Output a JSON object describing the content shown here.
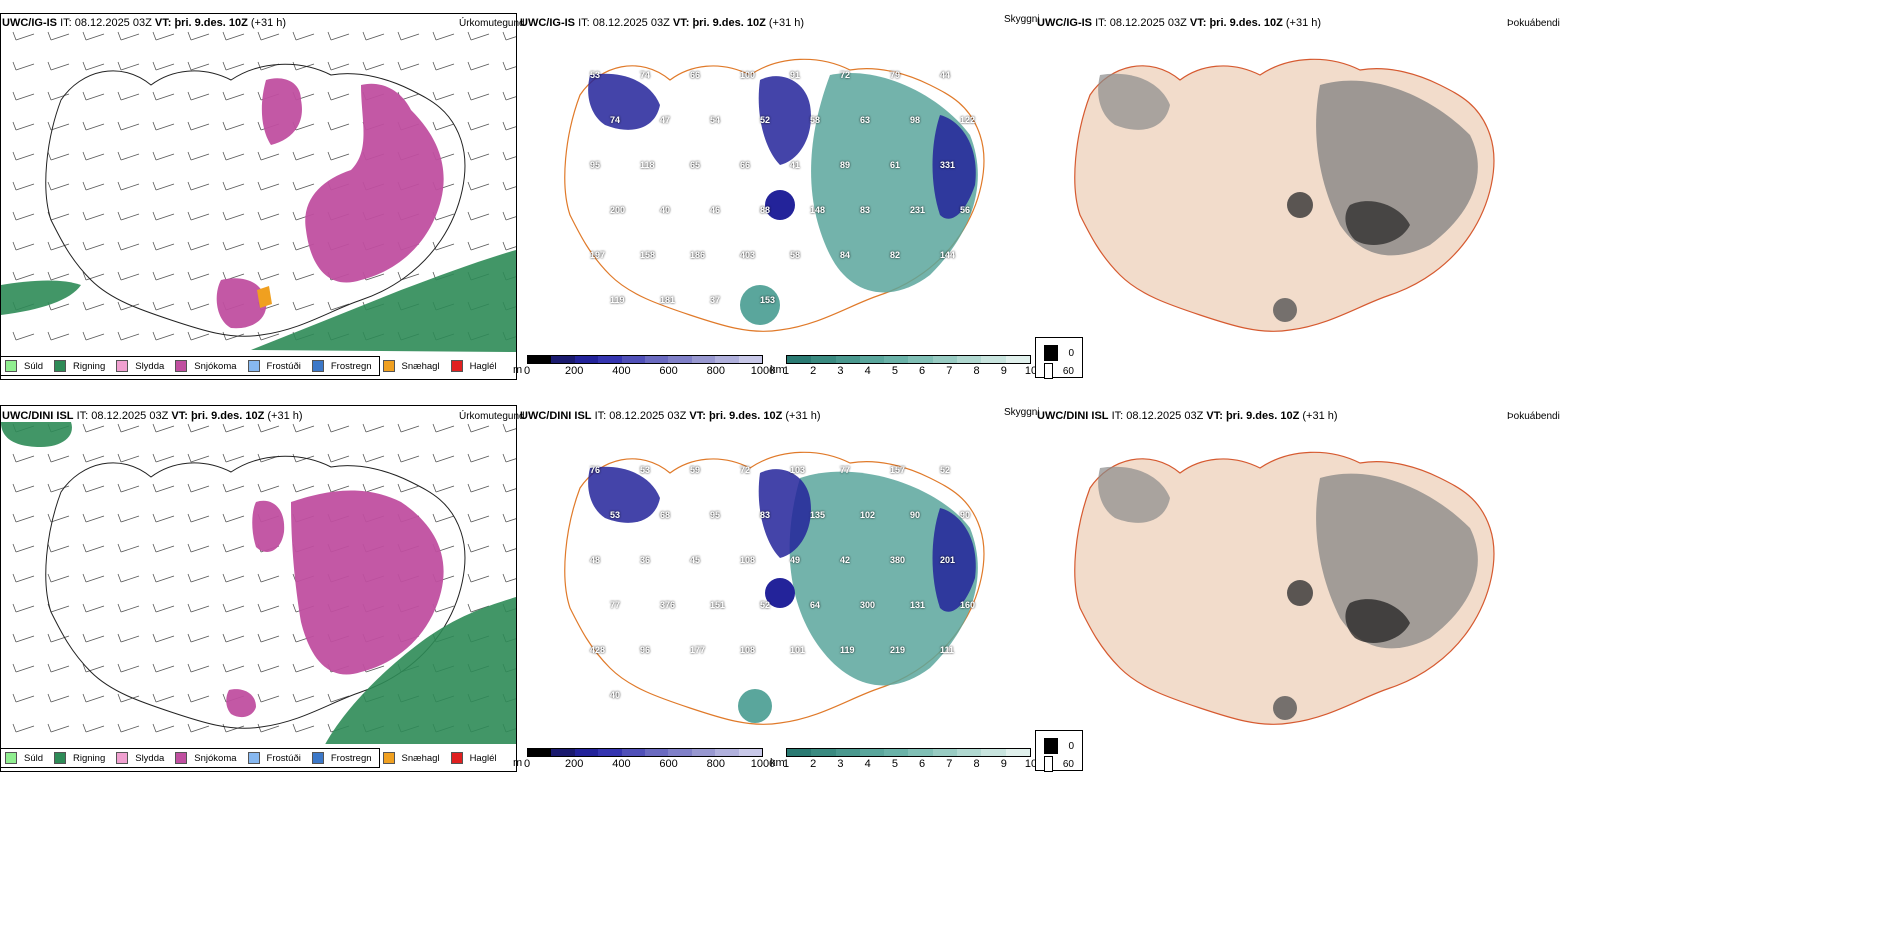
{
  "rows": [
    {
      "model": "UWC/IG-IS",
      "it_label": "IT:",
      "it_value": "08.12.2025 03Z",
      "vt_label": "VT:",
      "vt_value": "þri. 9.des. 10Z",
      "lead": "(+31 h)",
      "precip_title": "Úrkomutegund",
      "cloud_title": "Skyggni",
      "fog_title": "Þokuábendi"
    },
    {
      "model": "UWC/DINI ISL",
      "it_label": "IT:",
      "it_value": "08.12.2025 03Z",
      "vt_label": "VT:",
      "vt_value": "þri. 9.des. 10Z",
      "lead": "(+31 h)",
      "precip_title": "Úrkomutegund",
      "cloud_title": "Skyggni",
      "fog_title": "Þokuábendi"
    }
  ],
  "precip_legend": [
    {
      "label": "Súld",
      "color": "#90ee90"
    },
    {
      "label": "Rigning",
      "color": "#2e8b57"
    },
    {
      "label": "Slydda",
      "color": "#f0a0d0"
    },
    {
      "label": "Snjókoma",
      "color": "#c04fa0"
    },
    {
      "label": "Frostúði",
      "color": "#87b8f0"
    },
    {
      "label": "Frostregn",
      "color": "#3c78c8"
    },
    {
      "label": "Snæhagl",
      "color": "#f0a020"
    },
    {
      "label": "Haglél",
      "color": "#e02020"
    }
  ],
  "ceiling_scale": {
    "unit": "m",
    "ticks": [
      "0",
      "200",
      "400",
      "600",
      "800",
      "1000"
    ],
    "colors": [
      "#000000",
      "#1a1a6e",
      "#23239a",
      "#3535b0",
      "#5050b8",
      "#6a6ac0",
      "#8080c8",
      "#9898d0",
      "#b0b0dc",
      "#c8c8e8"
    ]
  },
  "visibility_scale": {
    "unit": "km",
    "ticks": [
      "1",
      "2",
      "3",
      "4",
      "5",
      "6",
      "7",
      "8",
      "9",
      "10"
    ],
    "colors": [
      "#2a7a72",
      "#3a8a80",
      "#4a988e",
      "#5aa69c",
      "#6ab2a8",
      "#80bfb5",
      "#98cbc2",
      "#b0d8d0",
      "#c8e4de",
      "#e0f0ec"
    ]
  },
  "fog_legend": [
    {
      "label": "0",
      "color": "#000000"
    },
    {
      "label": "60",
      "color": "#ffffff"
    }
  ],
  "map_labels": {
    "row1": [
      "53",
      "74",
      "66",
      "100",
      "91",
      "72",
      "79",
      "44",
      "74",
      "47",
      "54",
      "52",
      "58",
      "63",
      "98",
      "122",
      "95",
      "118",
      "65",
      "66",
      "41",
      "89",
      "61",
      "331",
      "200",
      "40",
      "46",
      "88",
      "148",
      "83",
      "231",
      "56",
      "197",
      "158",
      "186",
      "403",
      "58",
      "84",
      "82",
      "144",
      "119",
      "181",
      "37",
      "153"
    ],
    "row2": [
      "76",
      "53",
      "59",
      "72",
      "103",
      "77",
      "157",
      "52",
      "53",
      "68",
      "95",
      "83",
      "135",
      "102",
      "90",
      "90",
      "48",
      "36",
      "45",
      "108",
      "49",
      "42",
      "380",
      "201",
      "77",
      "376",
      "151",
      "52",
      "64",
      "300",
      "131",
      "160",
      "428",
      "96",
      "177",
      "108",
      "101",
      "119",
      "219",
      "111",
      "40"
    ]
  }
}
